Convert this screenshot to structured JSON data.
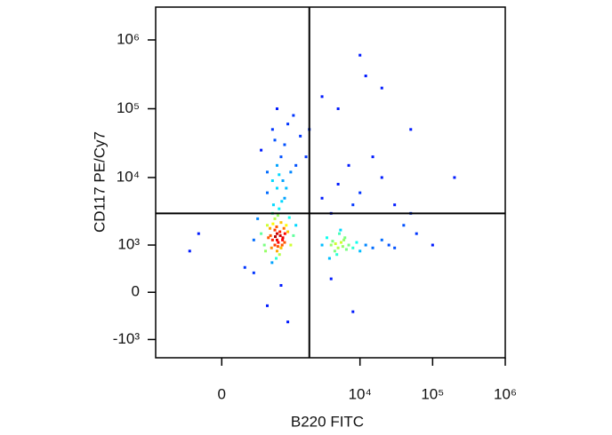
{
  "chart_data": {
    "type": "scatter",
    "x_label": "B220 FITC",
    "y_label": "CD117 PE/Cy7",
    "xlim": [
      -1000,
      1000000
    ],
    "ylim": [
      -1900,
      3000000
    ],
    "xticks": [
      0,
      {
        "value": 10000,
        "label": "10⁴"
      },
      {
        "value": 100000,
        "label": "10⁵"
      },
      {
        "value": 1000000,
        "label": "10⁶"
      }
    ],
    "yticks": [
      {
        "value": -1000,
        "label": "-10³"
      },
      0,
      {
        "value": 1000,
        "label": "10³"
      },
      {
        "value": 10000,
        "label": "10⁴"
      },
      {
        "value": 100000,
        "label": "10⁵"
      },
      {
        "value": 1000000,
        "label": "10⁶"
      }
    ],
    "gate": {
      "x": 2000,
      "y": 3000
    },
    "x": [
      600,
      700,
      800,
      500,
      900,
      650,
      750,
      550,
      850,
      1000,
      700,
      600,
      800,
      450,
      950,
      700,
      650,
      780,
      520,
      880,
      720,
      620,
      820,
      400,
      1100,
      1200,
      300,
      350,
      1300,
      680,
      760,
      590,
      900,
      500,
      700,
      800,
      650,
      730,
      580,
      840,
      910,
      470,
      1050,
      610,
      690,
      770,
      560,
      830,
      720,
      660,
      4000,
      5000,
      6000,
      4500,
      5500,
      7000,
      3500,
      8000,
      5200,
      4800,
      6500,
      9000,
      12000,
      15000,
      20000,
      3000,
      4200,
      5800,
      6200,
      4600,
      10000,
      25000,
      30000,
      3800,
      5400,
      700,
      900,
      600,
      1200,
      800,
      500,
      1000,
      1500,
      700,
      400,
      1100,
      650,
      850,
      950,
      1300,
      2000,
      3000,
      600,
      1800,
      750,
      3000,
      5000,
      8000,
      15000,
      20000,
      4000,
      10000,
      30000,
      50000,
      60000,
      40000,
      7000,
      12000,
      20000,
      10000,
      5000,
      50000,
      200000,
      100000,
      300,
      500,
      800,
      1000,
      4000,
      8000,
      -200,
      -300,
      200
    ],
    "y": [
      1200,
      1500,
      900,
      2000,
      1100,
      2500,
      3500,
      1800,
      1300,
      1600,
      800,
      3000,
      2200,
      1000,
      2000,
      1200,
      1700,
      1400,
      1300,
      1800,
      2800,
      4000,
      4500,
      1500,
      1000,
      1400,
      1200,
      2500,
      2000,
      600,
      700,
      500,
      5000,
      6000,
      7000,
      900,
      1000,
      1100,
      900,
      1200,
      1500,
      800,
      2600,
      2100,
      1900,
      1600,
      1400,
      1000,
      950,
      1350,
      1000,
      900,
      1200,
      800,
      1100,
      1000,
      1300,
      900,
      1500,
      700,
      850,
      1100,
      1000,
      900,
      1200,
      1000,
      1150,
      950,
      1300,
      1050,
      800,
      1000,
      900,
      600,
      1700,
      15000,
      30000,
      50000,
      80000,
      20000,
      12000,
      60000,
      40000,
      100000,
      25000,
      12000,
      35000,
      9000,
      7000,
      15000,
      50000,
      150000,
      9000,
      20000,
      11000,
      5000,
      8000,
      4000,
      20000,
      10000,
      3000,
      6000,
      4000,
      3000,
      1500,
      2000,
      15000,
      300000,
      200000,
      600000,
      100000,
      50000,
      10000,
      1000,
      300,
      -200,
      100,
      -500,
      200,
      -300,
      1500,
      800,
      400
    ]
  }
}
